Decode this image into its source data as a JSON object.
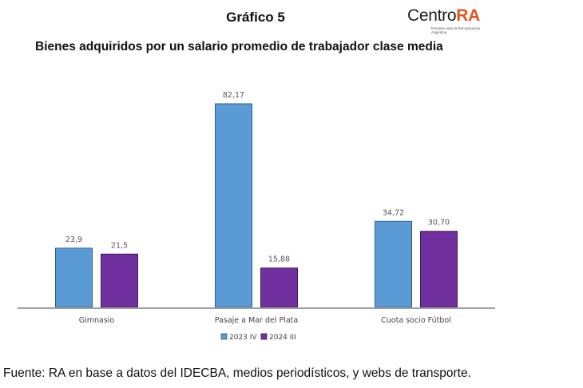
{
  "header": {
    "title": "Gráfico 5",
    "subtitle": "Bienes adquiridos por un salario promedio de trabajador clase media",
    "logo": {
      "main": "Centro",
      "accent": "RA",
      "tagline": "Estudios para la Recuperación Argentina",
      "accent_color": "#e8541c"
    }
  },
  "chart_data": {
    "type": "bar",
    "title": "Bienes adquiridos por un salario promedio de trabajador clase media",
    "xlabel": "",
    "ylabel": "",
    "categories": [
      "Gimnasio",
      "Pasaje a Mar del Plata",
      "Cuota socio Fútbol"
    ],
    "series": [
      {
        "name": "2023 IV",
        "color": "#5b9bd5",
        "values": [
          23.9,
          82.17,
          34.72
        ],
        "labels": [
          "23,9",
          "82,17",
          "34,72"
        ]
      },
      {
        "name": "2024 III",
        "color": "#7030a0",
        "values": [
          21.5,
          15.88,
          30.7
        ],
        "labels": [
          "21,5",
          "15,88",
          "30,70"
        ]
      }
    ],
    "ylim": [
      0,
      82.17
    ],
    "grid": false,
    "legend": "bottom-center",
    "data_labels": true
  },
  "footer": {
    "source": "Fuente: RA en base a datos del IDECBA, medios periodísticos, y webs de transporte."
  }
}
